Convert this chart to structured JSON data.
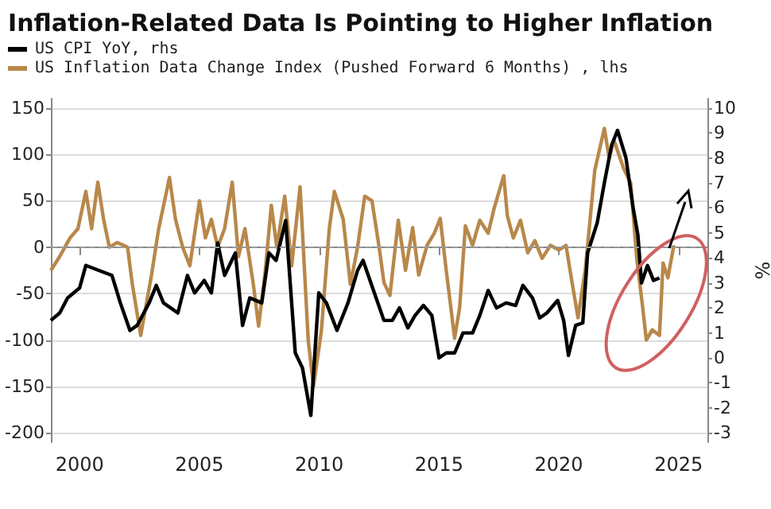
{
  "chart_data": {
    "type": "line",
    "title": "Inflation-Related Data Is Pointing to Higher Inflation",
    "y2label": "%",
    "xlim": [
      1998.8,
      2026.2
    ],
    "xticks": [
      2000,
      2005,
      2010,
      2015,
      2020,
      2025
    ],
    "ylim": [
      -210,
      160
    ],
    "yticks": [
      -200,
      -150,
      -100,
      -50,
      0,
      50,
      100,
      150
    ],
    "y2lim": [
      -3.37,
      10.37
    ],
    "y2ticks": [
      -3,
      -2,
      -1,
      0,
      1,
      2,
      3,
      4,
      5,
      6,
      7,
      8,
      9,
      10
    ],
    "grid": "y",
    "legend": "top left",
    "marker": "none",
    "line_style": "solid",
    "ref_lines": [
      {
        "axis": "y",
        "value": 0,
        "color": "#9a9a9a",
        "line_style": "dashed"
      }
    ],
    "series": [
      {
        "name": "US CPI YoY, rhs",
        "color": "#000000",
        "axis": "y2",
        "x": [
          1998.8,
          1999.17,
          1999.5,
          2000.0,
          2000.26,
          2000.8,
          2001.35,
          2001.7,
          2002.1,
          2002.4,
          2002.9,
          2003.2,
          2003.5,
          2004.1,
          2004.5,
          2004.8,
          2005.2,
          2005.5,
          2005.76,
          2006.05,
          2006.5,
          2006.8,
          2007.1,
          2007.6,
          2007.9,
          2008.2,
          2008.6,
          2009.0,
          2009.3,
          2009.65,
          2009.98,
          2010.3,
          2010.74,
          2011.2,
          2011.6,
          2011.83,
          2012.3,
          2012.7,
          2013.05,
          2013.35,
          2013.7,
          2014.0,
          2014.35,
          2014.7,
          2015.0,
          2015.3,
          2015.65,
          2016.0,
          2016.4,
          2016.7,
          2017.05,
          2017.4,
          2017.8,
          2018.2,
          2018.5,
          2018.9,
          2019.2,
          2019.5,
          2019.95,
          2020.2,
          2020.4,
          2020.7,
          2021.0,
          2021.2,
          2021.6,
          2021.9,
          2022.2,
          2022.45,
          2022.8,
          2023.1,
          2023.3,
          2023.45,
          2023.7,
          2023.95,
          2024.2
        ],
        "values": [
          1.5,
          1.8,
          2.4,
          2.8,
          3.7,
          3.5,
          3.3,
          2.2,
          1.1,
          1.3,
          2.2,
          2.9,
          2.2,
          1.8,
          3.3,
          2.6,
          3.1,
          2.6,
          4.6,
          3.3,
          4.2,
          1.3,
          2.4,
          2.2,
          4.2,
          3.9,
          5.5,
          0.2,
          -0.4,
          -2.3,
          2.6,
          2.2,
          1.1,
          2.2,
          3.5,
          3.9,
          2.6,
          1.5,
          1.5,
          2.0,
          1.2,
          1.7,
          2.1,
          1.7,
          0.0,
          0.2,
          0.2,
          1.0,
          1.0,
          1.7,
          2.7,
          2.0,
          2.2,
          2.1,
          2.9,
          2.4,
          1.6,
          1.8,
          2.3,
          1.5,
          0.1,
          1.3,
          1.4,
          4.2,
          5.4,
          7.0,
          8.5,
          9.1,
          8.0,
          6.0,
          4.9,
          3.0,
          3.7,
          3.1,
          3.2
        ]
      },
      {
        "name": "US Inflation Data Change Index (Pushed Forward 6 Months) , lhs",
        "color": "#b8884a",
        "axis": "y",
        "x": [
          1998.8,
          1999.17,
          1999.6,
          1999.93,
          2000.26,
          2000.5,
          2000.76,
          2001.0,
          2001.24,
          2001.57,
          2002.0,
          2002.2,
          2002.55,
          2003.0,
          2003.3,
          2003.75,
          2004.0,
          2004.3,
          2004.6,
          2005.0,
          2005.25,
          2005.5,
          2005.76,
          2006.05,
          2006.37,
          2006.63,
          2006.9,
          2007.25,
          2007.47,
          2007.73,
          2008.0,
          2008.23,
          2008.56,
          2008.85,
          2009.2,
          2009.54,
          2009.76,
          2010.09,
          2010.42,
          2010.63,
          2011.0,
          2011.3,
          2011.6,
          2011.9,
          2012.2,
          2012.5,
          2012.7,
          2012.95,
          2013.3,
          2013.6,
          2013.9,
          2014.15,
          2014.5,
          2014.8,
          2015.05,
          2015.3,
          2015.65,
          2015.86,
          2016.1,
          2016.4,
          2016.7,
          2017.05,
          2017.3,
          2017.7,
          2017.85,
          2018.1,
          2018.4,
          2018.7,
          2019.0,
          2019.3,
          2019.65,
          2020.0,
          2020.3,
          2020.5,
          2020.8,
          2021.1,
          2021.5,
          2021.9,
          2022.1,
          2022.3,
          2022.7,
          2023.0,
          2023.25,
          2023.5,
          2023.65,
          2023.9,
          2024.2,
          2024.35,
          2024.55,
          2024.8
        ],
        "values": [
          -25,
          -10,
          10,
          20,
          60,
          20,
          70,
          30,
          0,
          5,
          0,
          -40,
          -95,
          -30,
          20,
          75,
          30,
          0,
          -20,
          50,
          10,
          30,
          0,
          20,
          70,
          -10,
          20,
          -40,
          -85,
          -30,
          45,
          0,
          55,
          -20,
          65,
          -100,
          -150,
          -90,
          20,
          60,
          30,
          -40,
          0,
          55,
          50,
          0,
          -38,
          -52,
          29,
          -25,
          21,
          -30,
          2,
          15,
          31,
          -25,
          -98,
          -65,
          23,
          2,
          29,
          15,
          42,
          77,
          34,
          10,
          29,
          -6,
          7,
          -12,
          2,
          -3,
          2,
          -30,
          -76,
          -25,
          83,
          128,
          96,
          115,
          85,
          69,
          -12,
          -65,
          -100,
          -89,
          -95,
          -17,
          -33,
          2
        ]
      }
    ]
  }
}
